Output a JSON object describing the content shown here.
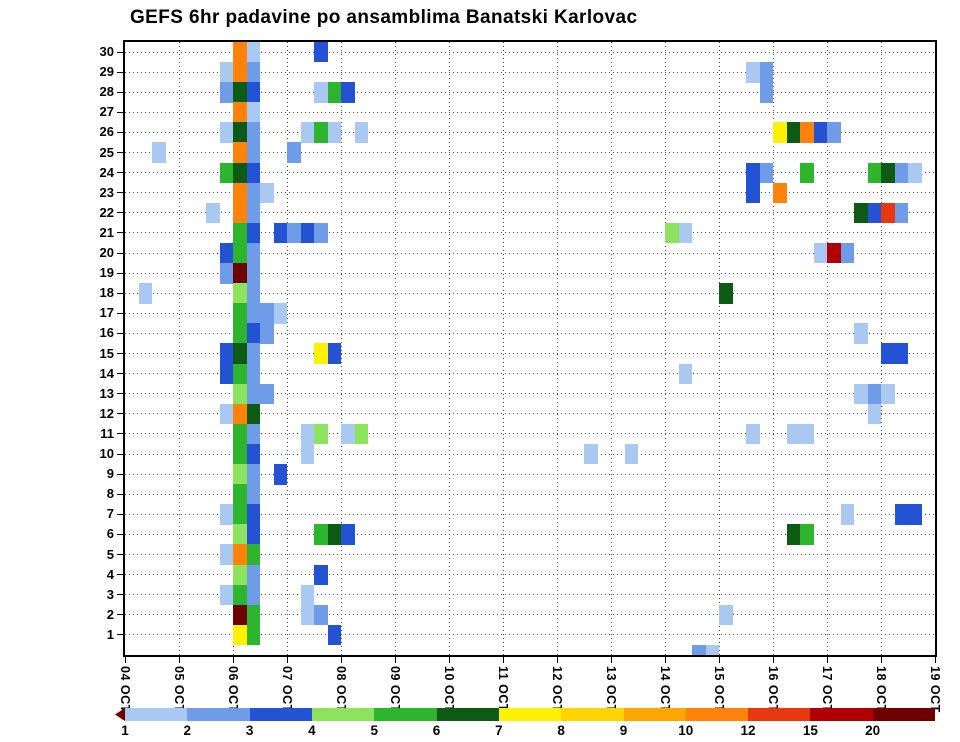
{
  "title": "GEFS 6hr padavine po ansamblima Banatski Karlovac",
  "chart_data": {
    "type": "heatmap",
    "title": "GEFS 6hr padavine po ansamblima Banatski Karlovac",
    "x_axis": {
      "labels": [
        "04 OCT",
        "05 OCT",
        "06 OCT",
        "07 OCT",
        "08 OCT",
        "09 OCT",
        "10 OCT",
        "11 OCT",
        "12 OCT",
        "13 OCT",
        "14 OCT",
        "15 OCT",
        "16 OCT",
        "17 OCT",
        "18 OCT",
        "19 OCT"
      ],
      "step_hours": 6,
      "steps_per_day": 4
    },
    "y_axis": {
      "labels": [
        "1",
        "2",
        "3",
        "4",
        "5",
        "6",
        "7",
        "8",
        "9",
        "10",
        "11",
        "12",
        "13",
        "14",
        "15",
        "16",
        "17",
        "18",
        "19",
        "20",
        "21",
        "22",
        "23",
        "24",
        "25",
        "26",
        "27",
        "28",
        "29",
        "30"
      ]
    },
    "grid": "dotted",
    "legend": {
      "tick_labels": [
        "1",
        "2",
        "3",
        "4",
        "5",
        "6",
        "7",
        "8",
        "9",
        "10",
        "12",
        "15",
        "20"
      ],
      "levels": [
        {
          "key": "LB",
          "from": 1,
          "to": 2,
          "color": "#a9c8f2"
        },
        {
          "key": "MB",
          "from": 2,
          "to": 3,
          "color": "#6f9ce8"
        },
        {
          "key": "B",
          "from": 3,
          "to": 4,
          "color": "#2353d4"
        },
        {
          "key": "LG",
          "from": 4,
          "to": 5,
          "color": "#8ee35e"
        },
        {
          "key": "G",
          "from": 5,
          "to": 6,
          "color": "#2eb52e"
        },
        {
          "key": "DG",
          "from": 6,
          "to": 7,
          "color": "#0c5a14"
        },
        {
          "key": "Y",
          "from": 7,
          "to": 8,
          "color": "#fff200"
        },
        {
          "key": "YO",
          "from": 8,
          "to": 9,
          "color": "#ffd400"
        },
        {
          "key": "LO",
          "from": 9,
          "to": 10,
          "color": "#ffa500"
        },
        {
          "key": "O",
          "from": 10,
          "to": 12,
          "color": "#ff820a"
        },
        {
          "key": "R",
          "from": 12,
          "to": 15,
          "color": "#e8380f"
        },
        {
          "key": "DR",
          "from": 15,
          "to": 20,
          "color": "#b20000"
        },
        {
          "key": "M",
          "from": 20,
          "to": null,
          "color": "#6e0000"
        }
      ]
    },
    "cells_format": [
      "ensemble_member",
      "time_step_6hr_from_04OCT00",
      "level_key"
    ],
    "cells": [
      [
        30,
        8,
        "O"
      ],
      [
        30,
        9,
        "LB"
      ],
      [
        30,
        14,
        "B"
      ],
      [
        29,
        7,
        "LB"
      ],
      [
        29,
        8,
        "O"
      ],
      [
        29,
        9,
        "MB"
      ],
      [
        29,
        46,
        "LB"
      ],
      [
        29,
        47,
        "MB"
      ],
      [
        28,
        7,
        "MB"
      ],
      [
        28,
        8,
        "DG"
      ],
      [
        28,
        9,
        "B"
      ],
      [
        28,
        14,
        "LB"
      ],
      [
        28,
        15,
        "G"
      ],
      [
        28,
        16,
        "B"
      ],
      [
        28,
        47,
        "MB"
      ],
      [
        27,
        8,
        "O"
      ],
      [
        27,
        9,
        "LB"
      ],
      [
        26,
        7,
        "LB"
      ],
      [
        26,
        8,
        "DG"
      ],
      [
        26,
        9,
        "MB"
      ],
      [
        26,
        13,
        "LB"
      ],
      [
        26,
        14,
        "G"
      ],
      [
        26,
        15,
        "LB"
      ],
      [
        26,
        17,
        "LB"
      ],
      [
        26,
        48,
        "Y"
      ],
      [
        26,
        49,
        "DG"
      ],
      [
        26,
        50,
        "O"
      ],
      [
        26,
        51,
        "B"
      ],
      [
        26,
        52,
        "MB"
      ],
      [
        25,
        2,
        "LB"
      ],
      [
        25,
        8,
        "O"
      ],
      [
        25,
        9,
        "MB"
      ],
      [
        25,
        12,
        "MB"
      ],
      [
        24,
        7,
        "G"
      ],
      [
        24,
        8,
        "DG"
      ],
      [
        24,
        9,
        "B"
      ],
      [
        24,
        46,
        "B"
      ],
      [
        24,
        47,
        "MB"
      ],
      [
        24,
        50,
        "G"
      ],
      [
        24,
        55,
        "G"
      ],
      [
        24,
        56,
        "DG"
      ],
      [
        24,
        57,
        "MB"
      ],
      [
        24,
        58,
        "LB"
      ],
      [
        23,
        8,
        "O"
      ],
      [
        23,
        9,
        "MB"
      ],
      [
        23,
        10,
        "LB"
      ],
      [
        23,
        46,
        "B"
      ],
      [
        23,
        48,
        "O"
      ],
      [
        22,
        6,
        "LB"
      ],
      [
        22,
        8,
        "O"
      ],
      [
        22,
        9,
        "MB"
      ],
      [
        22,
        54,
        "DG"
      ],
      [
        22,
        55,
        "B"
      ],
      [
        22,
        56,
        "R"
      ],
      [
        22,
        57,
        "MB"
      ],
      [
        21,
        8,
        "G"
      ],
      [
        21,
        9,
        "B"
      ],
      [
        21,
        11,
        "B"
      ],
      [
        21,
        12,
        "MB"
      ],
      [
        21,
        13,
        "B"
      ],
      [
        21,
        14,
        "MB"
      ],
      [
        21,
        40,
        "LG"
      ],
      [
        21,
        41,
        "LB"
      ],
      [
        20,
        7,
        "B"
      ],
      [
        20,
        8,
        "G"
      ],
      [
        20,
        9,
        "MB"
      ],
      [
        20,
        51,
        "LB"
      ],
      [
        20,
        52,
        "DR"
      ],
      [
        20,
        53,
        "MB"
      ],
      [
        19,
        7,
        "MB"
      ],
      [
        19,
        8,
        "M"
      ],
      [
        19,
        9,
        "MB"
      ],
      [
        18,
        1,
        "LB"
      ],
      [
        18,
        8,
        "LG"
      ],
      [
        18,
        9,
        "MB"
      ],
      [
        18,
        44,
        "DG"
      ],
      [
        17,
        8,
        "G"
      ],
      [
        17,
        9,
        "MB"
      ],
      [
        17,
        10,
        "MB"
      ],
      [
        17,
        11,
        "LB"
      ],
      [
        16,
        8,
        "G"
      ],
      [
        16,
        9,
        "B"
      ],
      [
        16,
        10,
        "MB"
      ],
      [
        16,
        54,
        "LB"
      ],
      [
        15,
        7,
        "B"
      ],
      [
        15,
        8,
        "DG"
      ],
      [
        15,
        9,
        "MB"
      ],
      [
        15,
        14,
        "Y"
      ],
      [
        15,
        15,
        "B"
      ],
      [
        15,
        56,
        "B"
      ],
      [
        15,
        57,
        "B"
      ],
      [
        14,
        7,
        "B"
      ],
      [
        14,
        8,
        "G"
      ],
      [
        14,
        9,
        "MB"
      ],
      [
        14,
        41,
        "LB"
      ],
      [
        13,
        8,
        "LG"
      ],
      [
        13,
        9,
        "MB"
      ],
      [
        13,
        10,
        "MB"
      ],
      [
        13,
        54,
        "LB"
      ],
      [
        13,
        55,
        "MB"
      ],
      [
        13,
        56,
        "LB"
      ],
      [
        12,
        7,
        "LB"
      ],
      [
        12,
        8,
        "O"
      ],
      [
        12,
        9,
        "DG"
      ],
      [
        12,
        55,
        "LB"
      ],
      [
        11,
        8,
        "G"
      ],
      [
        11,
        9,
        "MB"
      ],
      [
        11,
        13,
        "LB"
      ],
      [
        11,
        14,
        "LG"
      ],
      [
        11,
        16,
        "LB"
      ],
      [
        11,
        17,
        "LG"
      ],
      [
        11,
        46,
        "LB"
      ],
      [
        11,
        49,
        "LB"
      ],
      [
        11,
        50,
        "LB"
      ],
      [
        10,
        8,
        "G"
      ],
      [
        10,
        9,
        "B"
      ],
      [
        10,
        13,
        "LB"
      ],
      [
        10,
        34,
        "LB"
      ],
      [
        10,
        37,
        "LB"
      ],
      [
        9,
        8,
        "LG"
      ],
      [
        9,
        9,
        "MB"
      ],
      [
        9,
        11,
        "B"
      ],
      [
        8,
        8,
        "G"
      ],
      [
        8,
        9,
        "MB"
      ],
      [
        7,
        7,
        "LB"
      ],
      [
        7,
        8,
        "G"
      ],
      [
        7,
        9,
        "B"
      ],
      [
        7,
        53,
        "LB"
      ],
      [
        7,
        57,
        "B"
      ],
      [
        7,
        58,
        "B"
      ],
      [
        6,
        8,
        "LG"
      ],
      [
        6,
        9,
        "B"
      ],
      [
        6,
        14,
        "G"
      ],
      [
        6,
        15,
        "DG"
      ],
      [
        6,
        16,
        "B"
      ],
      [
        6,
        49,
        "DG"
      ],
      [
        6,
        50,
        "G"
      ],
      [
        5,
        7,
        "LB"
      ],
      [
        5,
        8,
        "O"
      ],
      [
        5,
        9,
        "G"
      ],
      [
        4,
        8,
        "LG"
      ],
      [
        4,
        9,
        "MB"
      ],
      [
        4,
        14,
        "B"
      ],
      [
        3,
        7,
        "LB"
      ],
      [
        3,
        8,
        "G"
      ],
      [
        3,
        9,
        "MB"
      ],
      [
        3,
        13,
        "LB"
      ],
      [
        2,
        8,
        "M"
      ],
      [
        2,
        9,
        "G"
      ],
      [
        2,
        13,
        "LB"
      ],
      [
        2,
        14,
        "MB"
      ],
      [
        2,
        44,
        "LB"
      ],
      [
        1,
        8,
        "Y"
      ],
      [
        1,
        9,
        "G"
      ],
      [
        1,
        15,
        "B"
      ],
      [
        0,
        42,
        "MB"
      ],
      [
        0,
        43,
        "LB"
      ]
    ]
  }
}
